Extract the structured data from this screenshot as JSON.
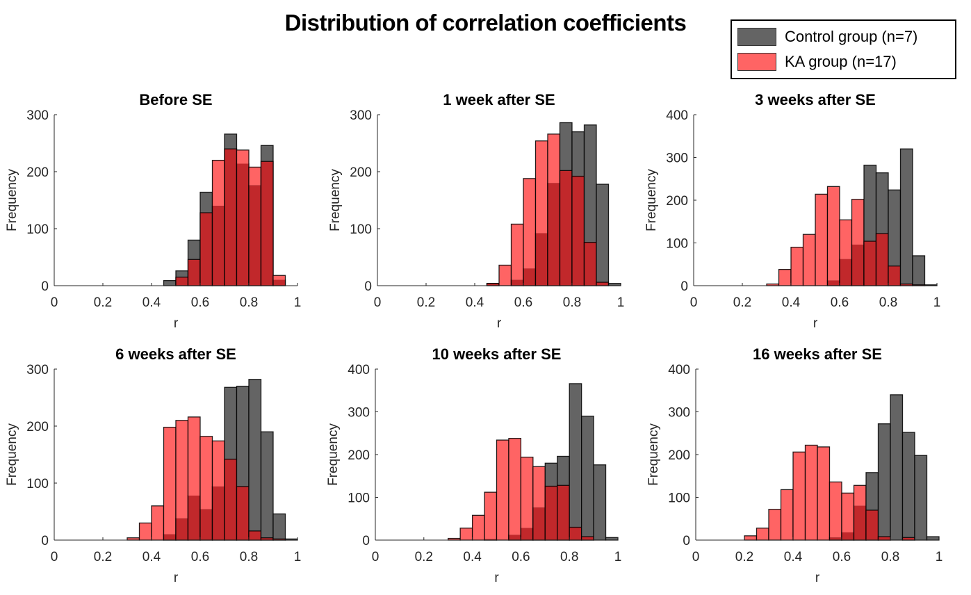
{
  "figure": {
    "title": "Distribution of correlation coefficients"
  },
  "legend": {
    "items": [
      {
        "label": "Control group (n=7)",
        "color": "#646464"
      },
      {
        "label": "KA group (n=17)",
        "color": "#ff6464"
      }
    ]
  },
  "colors": {
    "control": "#646464",
    "ka": "#ff6464",
    "overlap": "#c1282b",
    "edge": "#000000",
    "axis": "#262626"
  },
  "chart_data": [
    {
      "type": "bar",
      "title": "Before SE",
      "xlabel": "r",
      "ylabel": "Frequency",
      "xlim": [
        0,
        1
      ],
      "ylim": [
        0,
        300
      ],
      "xticks": [
        "0",
        "0.2",
        "0.4",
        "0.6",
        "0.8",
        "1"
      ],
      "yticks": [
        "0",
        "100",
        "200",
        "300"
      ],
      "bin_edges_start": 0.1,
      "bin_width": 0.05,
      "series": [
        {
          "name": "Control group (n=7)",
          "values": [
            0,
            0,
            0,
            0,
            0,
            0,
            0,
            9,
            26,
            80,
            164,
            140,
            266,
            214,
            176,
            246,
            10,
            0
          ]
        },
        {
          "name": "KA group (n=17)",
          "values": [
            0,
            0,
            0,
            0,
            0,
            0,
            0,
            0,
            15,
            46,
            128,
            220,
            240,
            238,
            208,
            218,
            18,
            0
          ]
        }
      ]
    },
    {
      "type": "bar",
      "title": "1 week after SE",
      "xlabel": "r",
      "ylabel": "Frequency",
      "xlim": [
        0,
        1
      ],
      "ylim": [
        0,
        300
      ],
      "xticks": [
        "0",
        "0.2",
        "0.4",
        "0.6",
        "0.8",
        "1"
      ],
      "yticks": [
        "0",
        "100",
        "200",
        "300"
      ],
      "bin_edges_start": 0.1,
      "bin_width": 0.05,
      "series": [
        {
          "name": "Control group (n=7)",
          "values": [
            0,
            0,
            0,
            0,
            0,
            0,
            0,
            4,
            0,
            10,
            30,
            92,
            180,
            286,
            270,
            282,
            178,
            4
          ]
        },
        {
          "name": "KA group (n=17)",
          "values": [
            0,
            0,
            0,
            0,
            0,
            0,
            0,
            4,
            36,
            108,
            188,
            254,
            266,
            202,
            192,
            76,
            6,
            0
          ]
        }
      ]
    },
    {
      "type": "bar",
      "title": "3 weeks after SE",
      "xlabel": "r",
      "ylabel": "Frequency",
      "xlim": [
        0,
        1
      ],
      "ylim": [
        0,
        400
      ],
      "xticks": [
        "0",
        "0.2",
        "0.4",
        "0.6",
        "0.8",
        "1"
      ],
      "yticks": [
        "0",
        "100",
        "200",
        "300",
        "400"
      ],
      "bin_edges_start": 0.1,
      "bin_width": 0.05,
      "series": [
        {
          "name": "Control group (n=7)",
          "values": [
            0,
            0,
            0,
            0,
            0,
            0,
            0,
            0,
            0,
            12,
            62,
            96,
            282,
            264,
            224,
            320,
            70,
            2
          ]
        },
        {
          "name": "KA group (n=17)",
          "values": [
            0,
            0,
            0,
            0,
            4,
            38,
            90,
            120,
            214,
            232,
            154,
            202,
            104,
            122,
            46,
            4,
            2,
            0
          ]
        }
      ]
    },
    {
      "type": "bar",
      "title": "6 weeks after SE",
      "xlabel": "r",
      "ylabel": "Frequency",
      "xlim": [
        0,
        1
      ],
      "ylim": [
        0,
        300
      ],
      "xticks": [
        "0",
        "0.2",
        "0.4",
        "0.6",
        "0.8",
        "1"
      ],
      "yticks": [
        "0",
        "100",
        "200",
        "300"
      ],
      "bin_edges_start": 0.1,
      "bin_width": 0.05,
      "series": [
        {
          "name": "Control group (n=7)",
          "values": [
            0,
            0,
            0,
            0,
            0,
            0,
            0,
            10,
            38,
            78,
            54,
            94,
            268,
            270,
            282,
            190,
            46,
            2
          ]
        },
        {
          "name": "KA group (n=17)",
          "values": [
            0,
            0,
            0,
            0,
            4,
            30,
            60,
            198,
            210,
            216,
            182,
            174,
            142,
            94,
            16,
            4,
            2,
            0
          ]
        }
      ]
    },
    {
      "type": "bar",
      "title": "10 weeks after SE",
      "xlabel": "r",
      "ylabel": "Frequency",
      "xlim": [
        0,
        1
      ],
      "ylim": [
        0,
        400
      ],
      "xticks": [
        "0",
        "0.2",
        "0.4",
        "0.6",
        "0.8",
        "1"
      ],
      "yticks": [
        "0",
        "100",
        "200",
        "300",
        "400"
      ],
      "bin_edges_start": 0.1,
      "bin_width": 0.05,
      "series": [
        {
          "name": "Control group (n=7)",
          "values": [
            0,
            0,
            0,
            0,
            0,
            0,
            0,
            2,
            0,
            12,
            28,
            76,
            180,
            196,
            366,
            290,
            176,
            6
          ]
        },
        {
          "name": "KA group (n=17)",
          "values": [
            0,
            0,
            0,
            0,
            4,
            28,
            58,
            112,
            234,
            238,
            194,
            172,
            126,
            128,
            30,
            8,
            0,
            0
          ]
        }
      ]
    },
    {
      "type": "bar",
      "title": "16 weeks after SE",
      "xlabel": "r",
      "ylabel": "Frequency",
      "xlim": [
        0,
        1
      ],
      "ylim": [
        0,
        400
      ],
      "xticks": [
        "0",
        "0.2",
        "0.4",
        "0.6",
        "0.8",
        "1"
      ],
      "yticks": [
        "0",
        "100",
        "200",
        "300",
        "400"
      ],
      "bin_edges_start": 0.1,
      "bin_width": 0.05,
      "series": [
        {
          "name": "Control group (n=7)",
          "values": [
            0,
            0,
            0,
            0,
            0,
            0,
            0,
            0,
            0,
            6,
            18,
            80,
            158,
            272,
            340,
            252,
            198,
            8
          ]
        },
        {
          "name": "KA group (n=17)",
          "values": [
            0,
            0,
            10,
            28,
            72,
            118,
            206,
            222,
            218,
            136,
            110,
            128,
            70,
            8,
            0,
            6,
            0,
            0
          ]
        }
      ]
    }
  ]
}
